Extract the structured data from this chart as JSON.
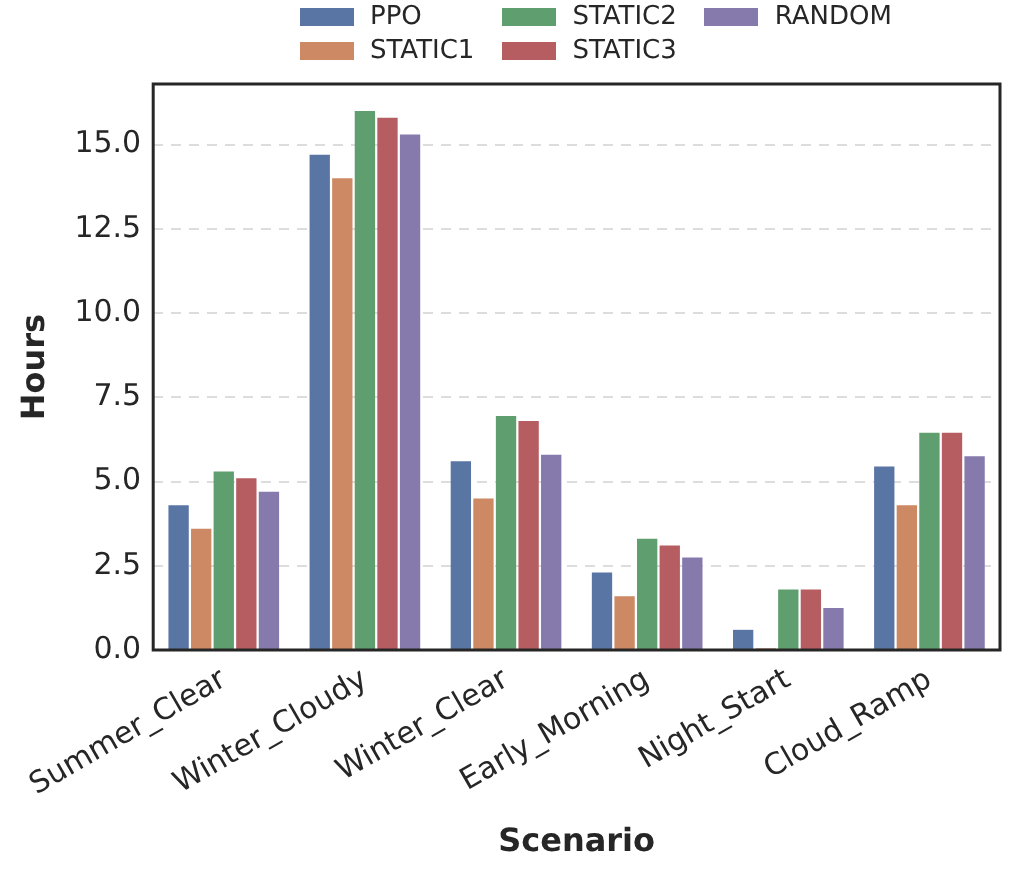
{
  "chart_data": {
    "type": "bar",
    "xlabel": "Scenario",
    "ylabel": "Hours",
    "categories": [
      "Summer_Clear",
      "Winter_Cloudy",
      "Winter_Clear",
      "Early_Morning",
      "Night_Start",
      "Cloud_Ramp"
    ],
    "series": [
      {
        "name": "PPO",
        "color": "#5975a4",
        "values": [
          4.3,
          14.7,
          5.6,
          2.3,
          0.6,
          5.45
        ]
      },
      {
        "name": "STATIC1",
        "color": "#cc8963",
        "values": [
          3.6,
          14.0,
          4.5,
          1.6,
          0.05,
          4.3
        ]
      },
      {
        "name": "STATIC2",
        "color": "#5f9e6e",
        "values": [
          5.3,
          16.0,
          6.95,
          3.3,
          1.8,
          6.45
        ]
      },
      {
        "name": "STATIC3",
        "color": "#b55d60",
        "values": [
          5.1,
          15.8,
          6.8,
          3.1,
          1.8,
          6.45
        ]
      },
      {
        "name": "RANDOM",
        "color": "#857aab",
        "values": [
          4.7,
          15.3,
          5.8,
          2.75,
          1.25,
          5.75
        ]
      }
    ],
    "ylim": [
      0,
      16.8
    ],
    "yticks": [
      {
        "value": 0,
        "label": "0.0"
      },
      {
        "value": 2.5,
        "label": "2.5"
      },
      {
        "value": 5,
        "label": "5.0"
      },
      {
        "value": 7.5,
        "label": "7.5"
      },
      {
        "value": 10,
        "label": "10.0"
      },
      {
        "value": 12.5,
        "label": "12.5"
      },
      {
        "value": 15,
        "label": "15.0"
      }
    ],
    "grid": "y",
    "legend": "top"
  }
}
